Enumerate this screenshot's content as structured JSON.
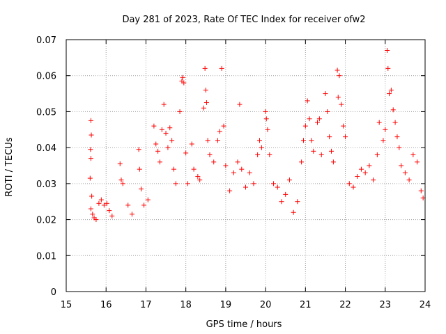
{
  "chart_data": {
    "type": "scatter",
    "title": "Day 281 of 2023, Rate Of TEC Index for receiver ofw2",
    "xlabel": "GPS time / hours",
    "ylabel": "ROTI / TECUs",
    "xlim": [
      15,
      24
    ],
    "ylim": [
      0,
      0.07
    ],
    "x_ticks": [
      15,
      16,
      17,
      18,
      19,
      20,
      21,
      22,
      23,
      24
    ],
    "x_tick_labels": [
      "15",
      "16",
      "17",
      "18",
      "19",
      "20",
      "21",
      "22",
      "23",
      "24"
    ],
    "y_ticks": [
      0,
      0.01,
      0.02,
      0.03,
      0.04,
      0.05,
      0.06,
      0.07
    ],
    "y_tick_labels": [
      "0",
      "0.01",
      "0.02",
      "0.03",
      "0.04",
      "0.05",
      "0.06",
      "0.07"
    ],
    "grid": true,
    "marker": "plus",
    "color": "#ff0000",
    "series": [
      {
        "points": [
          [
            15.62,
            0.0475
          ],
          [
            15.63,
            0.0435
          ],
          [
            15.61,
            0.0395
          ],
          [
            15.62,
            0.037
          ],
          [
            15.6,
            0.0315
          ],
          [
            15.64,
            0.0265
          ],
          [
            15.62,
            0.023
          ],
          [
            15.66,
            0.0215
          ],
          [
            15.7,
            0.0205
          ],
          [
            15.75,
            0.02
          ],
          [
            15.82,
            0.0245
          ],
          [
            15.88,
            0.0255
          ],
          [
            15.95,
            0.024
          ],
          [
            16.02,
            0.0245
          ],
          [
            16.08,
            0.0225
          ],
          [
            16.15,
            0.021
          ],
          [
            16.35,
            0.0355
          ],
          [
            16.38,
            0.031
          ],
          [
            16.42,
            0.03
          ],
          [
            16.55,
            0.024
          ],
          [
            16.65,
            0.0215
          ],
          [
            16.82,
            0.0395
          ],
          [
            16.84,
            0.034
          ],
          [
            16.88,
            0.0285
          ],
          [
            16.95,
            0.024
          ],
          [
            17.05,
            0.0255
          ],
          [
            17.2,
            0.046
          ],
          [
            17.25,
            0.041
          ],
          [
            17.3,
            0.039
          ],
          [
            17.35,
            0.036
          ],
          [
            17.4,
            0.045
          ],
          [
            17.45,
            0.052
          ],
          [
            17.5,
            0.044
          ],
          [
            17.55,
            0.04
          ],
          [
            17.6,
            0.0455
          ],
          [
            17.65,
            0.042
          ],
          [
            17.7,
            0.034
          ],
          [
            17.75,
            0.03
          ],
          [
            17.85,
            0.05
          ],
          [
            17.9,
            0.0585
          ],
          [
            17.92,
            0.0595
          ],
          [
            17.95,
            0.058
          ],
          [
            18.0,
            0.0385
          ],
          [
            18.05,
            0.03
          ],
          [
            18.15,
            0.041
          ],
          [
            18.2,
            0.034
          ],
          [
            18.3,
            0.032
          ],
          [
            18.35,
            0.031
          ],
          [
            18.45,
            0.051
          ],
          [
            18.48,
            0.062
          ],
          [
            18.5,
            0.056
          ],
          [
            18.52,
            0.0525
          ],
          [
            18.55,
            0.042
          ],
          [
            18.6,
            0.038
          ],
          [
            18.7,
            0.036
          ],
          [
            18.8,
            0.042
          ],
          [
            18.85,
            0.0445
          ],
          [
            18.9,
            0.062
          ],
          [
            18.95,
            0.046
          ],
          [
            19.0,
            0.035
          ],
          [
            19.1,
            0.028
          ],
          [
            19.2,
            0.033
          ],
          [
            19.3,
            0.036
          ],
          [
            19.35,
            0.052
          ],
          [
            19.4,
            0.034
          ],
          [
            19.5,
            0.029
          ],
          [
            19.6,
            0.033
          ],
          [
            19.7,
            0.03
          ],
          [
            19.8,
            0.038
          ],
          [
            19.85,
            0.042
          ],
          [
            19.9,
            0.04
          ],
          [
            20.0,
            0.05
          ],
          [
            20.02,
            0.048
          ],
          [
            20.05,
            0.045
          ],
          [
            20.1,
            0.038
          ],
          [
            20.2,
            0.03
          ],
          [
            20.3,
            0.029
          ],
          [
            20.4,
            0.025
          ],
          [
            20.5,
            0.027
          ],
          [
            20.6,
            0.031
          ],
          [
            20.7,
            0.022
          ],
          [
            20.8,
            0.025
          ],
          [
            20.9,
            0.036
          ],
          [
            20.95,
            0.042
          ],
          [
            21.0,
            0.046
          ],
          [
            21.05,
            0.053
          ],
          [
            21.1,
            0.048
          ],
          [
            21.15,
            0.042
          ],
          [
            21.2,
            0.039
          ],
          [
            21.3,
            0.047
          ],
          [
            21.35,
            0.048
          ],
          [
            21.4,
            0.038
          ],
          [
            21.5,
            0.055
          ],
          [
            21.55,
            0.05
          ],
          [
            21.6,
            0.043
          ],
          [
            21.65,
            0.039
          ],
          [
            21.7,
            0.036
          ],
          [
            21.8,
            0.0615
          ],
          [
            21.82,
            0.054
          ],
          [
            21.85,
            0.06
          ],
          [
            21.9,
            0.052
          ],
          [
            21.95,
            0.046
          ],
          [
            22.0,
            0.043
          ],
          [
            22.1,
            0.03
          ],
          [
            22.2,
            0.029
          ],
          [
            22.3,
            0.032
          ],
          [
            22.4,
            0.034
          ],
          [
            22.5,
            0.033
          ],
          [
            22.6,
            0.035
          ],
          [
            22.7,
            0.031
          ],
          [
            22.8,
            0.038
          ],
          [
            22.85,
            0.047
          ],
          [
            22.95,
            0.042
          ],
          [
            23.0,
            0.045
          ],
          [
            23.05,
            0.067
          ],
          [
            23.07,
            0.062
          ],
          [
            23.1,
            0.055
          ],
          [
            23.15,
            0.056
          ],
          [
            23.2,
            0.0505
          ],
          [
            23.25,
            0.047
          ],
          [
            23.3,
            0.043
          ],
          [
            23.35,
            0.04
          ],
          [
            23.4,
            0.035
          ],
          [
            23.5,
            0.033
          ],
          [
            23.6,
            0.031
          ],
          [
            23.7,
            0.038
          ],
          [
            23.8,
            0.036
          ],
          [
            23.9,
            0.028
          ],
          [
            23.95,
            0.026
          ]
        ]
      }
    ]
  }
}
